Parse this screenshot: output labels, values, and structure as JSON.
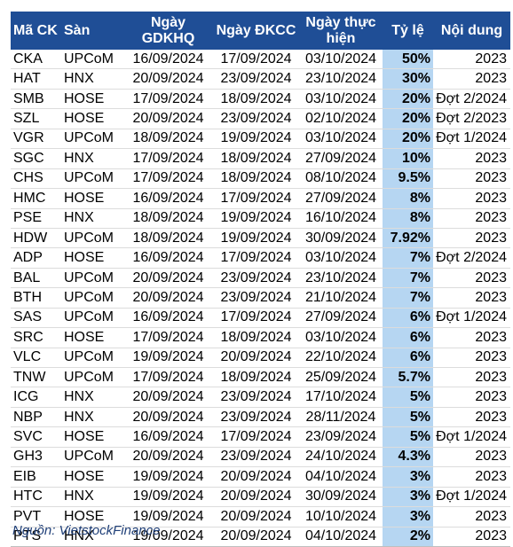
{
  "headers": [
    "Mã CK",
    "Sàn",
    "Ngày GDKHQ",
    "Ngày ĐKCC",
    "Ngày thực hiện",
    "Tỷ lệ",
    "Nội dung"
  ],
  "rows": [
    {
      "code": "CKA",
      "exchange": "UPCoM",
      "ex_date": "16/09/2024",
      "record_date": "17/09/2024",
      "pay_date": "03/10/2024",
      "rate": "50%",
      "note": "2023"
    },
    {
      "code": "HAT",
      "exchange": "HNX",
      "ex_date": "20/09/2024",
      "record_date": "23/09/2024",
      "pay_date": "23/10/2024",
      "rate": "30%",
      "note": "2023"
    },
    {
      "code": "SMB",
      "exchange": "HOSE",
      "ex_date": "17/09/2024",
      "record_date": "18/09/2024",
      "pay_date": "03/10/2024",
      "rate": "20%",
      "note": "Đợt 2/2024"
    },
    {
      "code": "SZL",
      "exchange": "HOSE",
      "ex_date": "20/09/2024",
      "record_date": "23/09/2024",
      "pay_date": "02/10/2024",
      "rate": "20%",
      "note": "Đợt 2/2023"
    },
    {
      "code": "VGR",
      "exchange": "UPCoM",
      "ex_date": "18/09/2024",
      "record_date": "19/09/2024",
      "pay_date": "03/10/2024",
      "rate": "20%",
      "note": "Đợt 1/2024"
    },
    {
      "code": "SGC",
      "exchange": "HNX",
      "ex_date": "17/09/2024",
      "record_date": "18/09/2024",
      "pay_date": "27/09/2024",
      "rate": "10%",
      "note": "2023"
    },
    {
      "code": "CHS",
      "exchange": "UPCoM",
      "ex_date": "17/09/2024",
      "record_date": "18/09/2024",
      "pay_date": "08/10/2024",
      "rate": "9.5%",
      "note": "2023"
    },
    {
      "code": "HMC",
      "exchange": "HOSE",
      "ex_date": "16/09/2024",
      "record_date": "17/09/2024",
      "pay_date": "27/09/2024",
      "rate": "8%",
      "note": "2023"
    },
    {
      "code": "PSE",
      "exchange": "HNX",
      "ex_date": "18/09/2024",
      "record_date": "19/09/2024",
      "pay_date": "16/10/2024",
      "rate": "8%",
      "note": "2023"
    },
    {
      "code": "HDW",
      "exchange": "UPCoM",
      "ex_date": "18/09/2024",
      "record_date": "19/09/2024",
      "pay_date": "30/09/2024",
      "rate": "7.92%",
      "note": "2023"
    },
    {
      "code": "ADP",
      "exchange": "HOSE",
      "ex_date": "16/09/2024",
      "record_date": "17/09/2024",
      "pay_date": "03/10/2024",
      "rate": "7%",
      "note": "Đợt 2/2024"
    },
    {
      "code": "BAL",
      "exchange": "UPCoM",
      "ex_date": "20/09/2024",
      "record_date": "23/09/2024",
      "pay_date": "23/10/2024",
      "rate": "7%",
      "note": "2023"
    },
    {
      "code": "BTH",
      "exchange": "UPCoM",
      "ex_date": "20/09/2024",
      "record_date": "23/09/2024",
      "pay_date": "21/10/2024",
      "rate": "7%",
      "note": "2023"
    },
    {
      "code": "SAS",
      "exchange": "UPCoM",
      "ex_date": "16/09/2024",
      "record_date": "17/09/2024",
      "pay_date": "27/09/2024",
      "rate": "6%",
      "note": "Đợt 1/2024"
    },
    {
      "code": "SRC",
      "exchange": "HOSE",
      "ex_date": "17/09/2024",
      "record_date": "18/09/2024",
      "pay_date": "03/10/2024",
      "rate": "6%",
      "note": "2023"
    },
    {
      "code": "VLC",
      "exchange": "UPCoM",
      "ex_date": "19/09/2024",
      "record_date": "20/09/2024",
      "pay_date": "22/10/2024",
      "rate": "6%",
      "note": "2023"
    },
    {
      "code": "TNW",
      "exchange": "UPCoM",
      "ex_date": "17/09/2024",
      "record_date": "18/09/2024",
      "pay_date": "25/09/2024",
      "rate": "5.7%",
      "note": "2023"
    },
    {
      "code": "ICG",
      "exchange": "HNX",
      "ex_date": "20/09/2024",
      "record_date": "23/09/2024",
      "pay_date": "17/10/2024",
      "rate": "5%",
      "note": "2023"
    },
    {
      "code": "NBP",
      "exchange": "HNX",
      "ex_date": "20/09/2024",
      "record_date": "23/09/2024",
      "pay_date": "28/11/2024",
      "rate": "5%",
      "note": "2023"
    },
    {
      "code": "SVC",
      "exchange": "HOSE",
      "ex_date": "16/09/2024",
      "record_date": "17/09/2024",
      "pay_date": "23/09/2024",
      "rate": "5%",
      "note": "Đợt 1/2024"
    },
    {
      "code": "GH3",
      "exchange": "UPCoM",
      "ex_date": "20/09/2024",
      "record_date": "23/09/2024",
      "pay_date": "24/10/2024",
      "rate": "4.3%",
      "note": "2023"
    },
    {
      "code": "EIB",
      "exchange": "HOSE",
      "ex_date": "19/09/2024",
      "record_date": "20/09/2024",
      "pay_date": "04/10/2024",
      "rate": "3%",
      "note": "2023"
    },
    {
      "code": "HTC",
      "exchange": "HNX",
      "ex_date": "19/09/2024",
      "record_date": "20/09/2024",
      "pay_date": "30/09/2024",
      "rate": "3%",
      "note": "Đợt 1/2024"
    },
    {
      "code": "PVT",
      "exchange": "HOSE",
      "ex_date": "19/09/2024",
      "record_date": "20/09/2024",
      "pay_date": "10/10/2024",
      "rate": "3%",
      "note": "2023"
    },
    {
      "code": "PTS",
      "exchange": "HNX",
      "ex_date": "19/09/2024",
      "record_date": "20/09/2024",
      "pay_date": "04/10/2024",
      "rate": "2%",
      "note": "2023"
    }
  ],
  "source": "Nguồn: VietstockFinance",
  "colors": {
    "header_bg": "#1f4e96",
    "header_text": "#ffffff",
    "rate_bg": "#b6d6f2",
    "source_text": "#1f3f78"
  }
}
